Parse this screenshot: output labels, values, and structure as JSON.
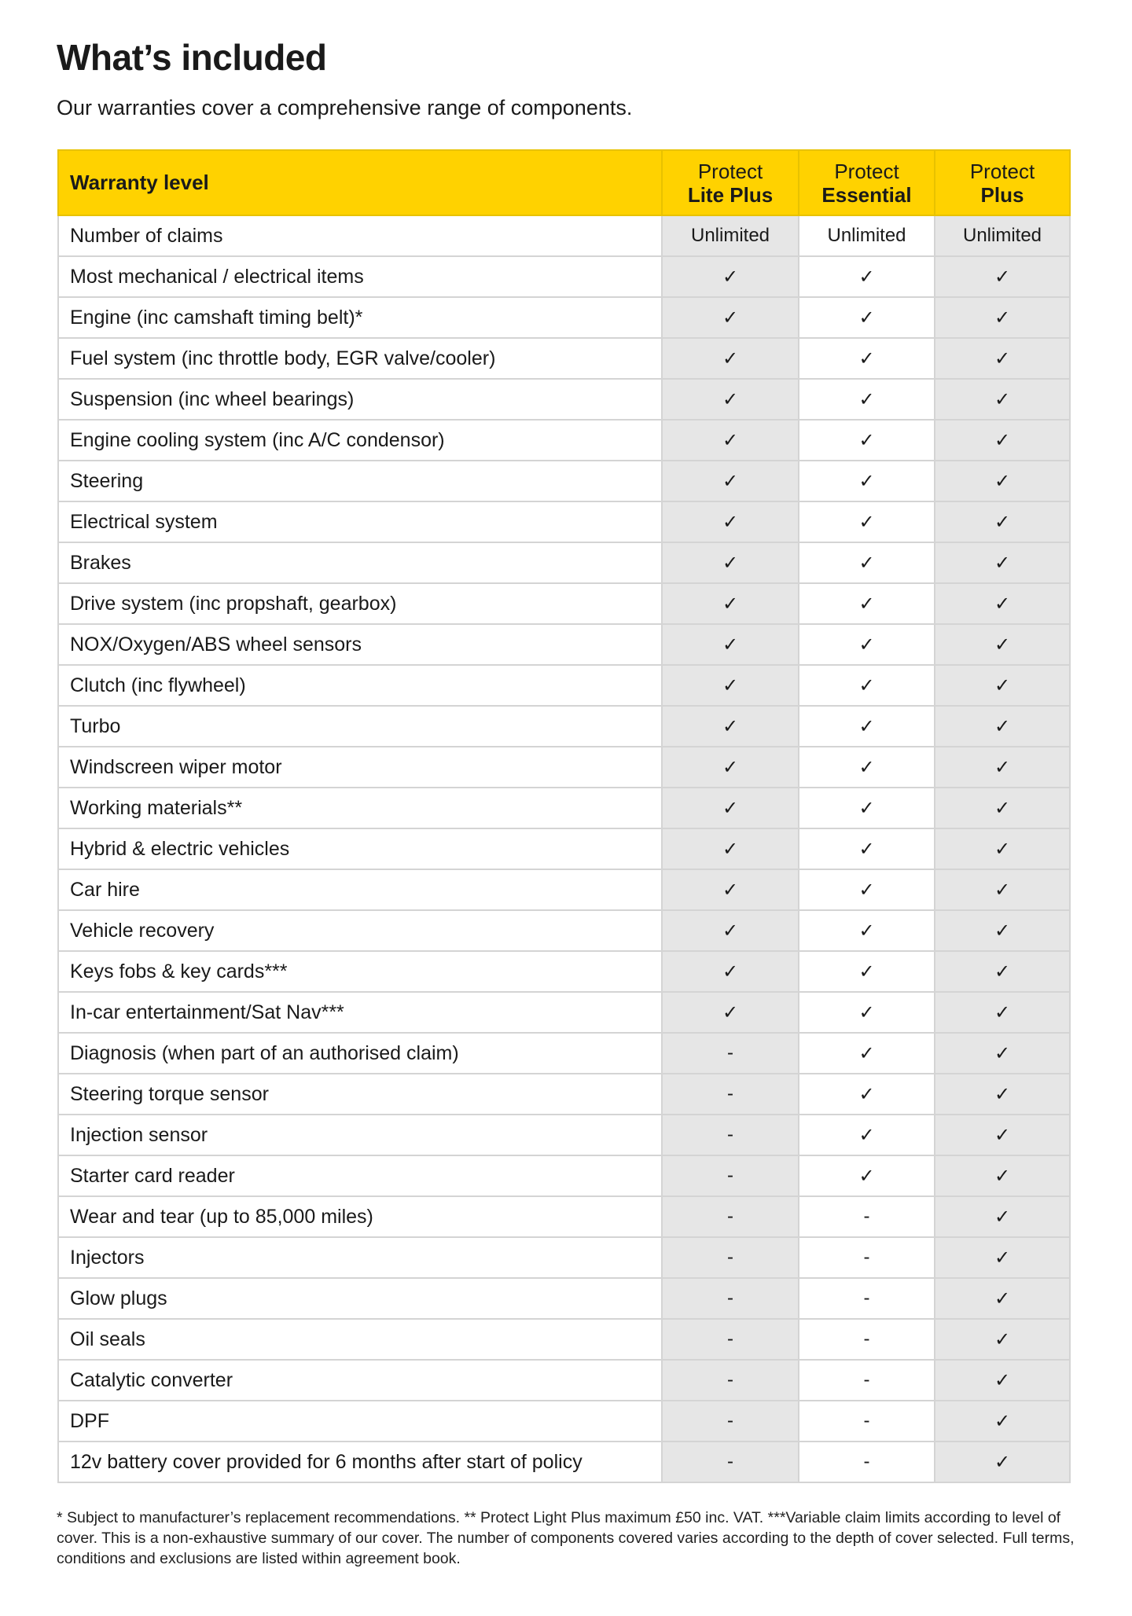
{
  "title": "What’s included",
  "subtitle": "Our warranties cover a comprehensive range of components.",
  "colors": {
    "header_yellow": "#ffd200",
    "shaded_column": "#e6e6e6"
  },
  "table": {
    "header": {
      "label": "Warranty level",
      "plans": [
        {
          "line1": "Protect",
          "line2": "Lite Plus"
        },
        {
          "line1": "Protect",
          "line2": "Essential"
        },
        {
          "line1": "Protect",
          "line2": "Plus"
        }
      ]
    },
    "rows": [
      {
        "label": "Number of claims",
        "values": [
          "Unlimited",
          "Unlimited",
          "Unlimited"
        ]
      },
      {
        "label": "Most mechanical / electrical items",
        "values": [
          "✓",
          "✓",
          "✓"
        ]
      },
      {
        "label": "Engine (inc camshaft timing belt)*",
        "values": [
          "✓",
          "✓",
          "✓"
        ]
      },
      {
        "label": "Fuel system (inc throttle body, EGR valve/cooler)",
        "values": [
          "✓",
          "✓",
          "✓"
        ]
      },
      {
        "label": "Suspension (inc wheel bearings)",
        "values": [
          "✓",
          "✓",
          "✓"
        ]
      },
      {
        "label": "Engine cooling system (inc A/C condensor)",
        "values": [
          "✓",
          "✓",
          "✓"
        ]
      },
      {
        "label": "Steering",
        "values": [
          "✓",
          "✓",
          "✓"
        ]
      },
      {
        "label": "Electrical system",
        "values": [
          "✓",
          "✓",
          "✓"
        ]
      },
      {
        "label": "Brakes",
        "values": [
          "✓",
          "✓",
          "✓"
        ]
      },
      {
        "label": "Drive system (inc propshaft, gearbox)",
        "values": [
          "✓",
          "✓",
          "✓"
        ]
      },
      {
        "label": "NOX/Oxygen/ABS wheel sensors",
        "values": [
          "✓",
          "✓",
          "✓"
        ]
      },
      {
        "label": "Clutch (inc flywheel)",
        "values": [
          "✓",
          "✓",
          "✓"
        ]
      },
      {
        "label": "Turbo",
        "values": [
          "✓",
          "✓",
          "✓"
        ]
      },
      {
        "label": "Windscreen wiper motor",
        "values": [
          "✓",
          "✓",
          "✓"
        ]
      },
      {
        "label": "Working materials**",
        "values": [
          "✓",
          "✓",
          "✓"
        ]
      },
      {
        "label": "Hybrid & electric vehicles",
        "values": [
          "✓",
          "✓",
          "✓"
        ]
      },
      {
        "label": "Car hire",
        "values": [
          "✓",
          "✓",
          "✓"
        ]
      },
      {
        "label": "Vehicle recovery",
        "values": [
          "✓",
          "✓",
          "✓"
        ]
      },
      {
        "label": "Keys fobs & key cards***",
        "values": [
          "✓",
          "✓",
          "✓"
        ]
      },
      {
        "label": "In-car entertainment/Sat Nav***",
        "values": [
          "✓",
          "✓",
          "✓"
        ]
      },
      {
        "label": "Diagnosis (when part of an authorised claim)",
        "values": [
          "-",
          "✓",
          "✓"
        ]
      },
      {
        "label": "Steering torque sensor",
        "values": [
          "-",
          "✓",
          "✓"
        ]
      },
      {
        "label": "Injection sensor",
        "values": [
          "-",
          "✓",
          "✓"
        ]
      },
      {
        "label": "Starter card reader",
        "values": [
          "-",
          "✓",
          "✓"
        ]
      },
      {
        "label": "Wear and tear (up to 85,000 miles)",
        "values": [
          "-",
          "-",
          "✓"
        ]
      },
      {
        "label": "Injectors",
        "values": [
          "-",
          "-",
          "✓"
        ]
      },
      {
        "label": "Glow plugs",
        "values": [
          "-",
          "-",
          "✓"
        ]
      },
      {
        "label": "Oil seals",
        "values": [
          "-",
          "-",
          "✓"
        ]
      },
      {
        "label": "Catalytic converter",
        "values": [
          "-",
          "-",
          "✓"
        ]
      },
      {
        "label": "DPF",
        "values": [
          "-",
          "-",
          "✓"
        ]
      },
      {
        "label": "12v battery cover provided for 6 months after start of policy",
        "values": [
          "-",
          "-",
          "✓"
        ]
      }
    ]
  },
  "footnote": "* Subject to manufacturer’s replacement recommendations. ** Protect Light Plus maximum £50 inc. VAT. ***Variable claim limits according to level of cover. This is a non-exhaustive summary of our cover. The number of components covered varies according to the depth of cover selected. Full terms, conditions and exclusions are listed within agreement book."
}
